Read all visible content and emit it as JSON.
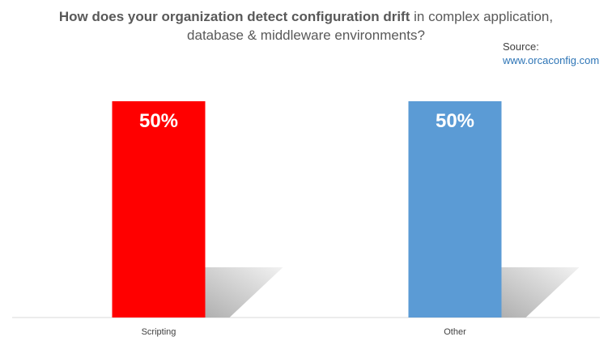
{
  "title": {
    "bold_part": "How does your organization detect configuration drift",
    "line1_rest": " in complex application,",
    "line2": "database & middleware environments?"
  },
  "source": {
    "label": "Source:",
    "link": "www.orcaconfig.com"
  },
  "chart_data": {
    "type": "bar",
    "categories": [
      "Scripting",
      "Other"
    ],
    "values": [
      50,
      50
    ],
    "data_labels": [
      "50%",
      "50%"
    ],
    "colors": [
      "#ff0000",
      "#5b9bd5"
    ],
    "ylim": [
      0,
      50
    ],
    "grid": false,
    "legend": "none"
  }
}
